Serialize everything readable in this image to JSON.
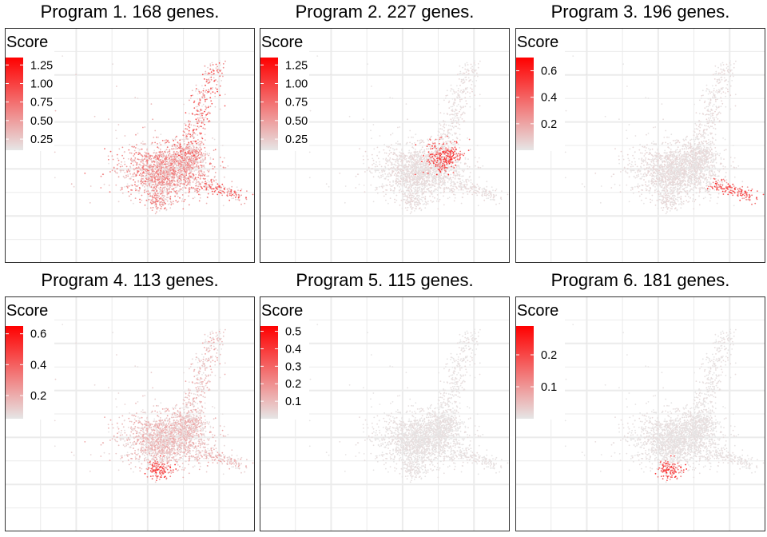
{
  "figure": {
    "colors": {
      "low": "#e6e6e6",
      "high": "#ff0000",
      "grid": "#ebebeb",
      "border": "#333333",
      "text": "#000000"
    }
  },
  "chart_data": [
    {
      "type": "scatter",
      "title": "Program 1. 168 genes.",
      "legend": {
        "title": "Score",
        "ticks": [
          "1.25",
          "1.00",
          "0.75",
          "0.50",
          "0.25"
        ],
        "tick_values": [
          1.25,
          1.0,
          0.75,
          0.5,
          0.25
        ],
        "range": [
          0.1,
          1.35
        ]
      },
      "hotspots": [],
      "intensity": 0.55
    },
    {
      "type": "scatter",
      "title": "Program 2. 227 genes.",
      "legend": {
        "title": "Score",
        "ticks": [
          "1.25",
          "1.00",
          "0.75",
          "0.50",
          "0.25"
        ],
        "tick_values": [
          1.25,
          1.0,
          0.75,
          0.5,
          0.25
        ],
        "range": [
          0.1,
          1.35
        ]
      },
      "hotspots": [
        "upper-right-lobe"
      ],
      "intensity": 0.08
    },
    {
      "type": "scatter",
      "title": "Program 3. 196 genes.",
      "legend": {
        "title": "Score",
        "ticks": [
          "0.6",
          "0.4",
          "0.2"
        ],
        "tick_values": [
          0.6,
          0.4,
          0.2
        ],
        "range": [
          0.0,
          0.7
        ]
      },
      "hotspots": [
        "right-tail"
      ],
      "intensity": 0.08
    },
    {
      "type": "scatter",
      "title": "Program 4. 113 genes.",
      "legend": {
        "title": "Score",
        "ticks": [
          "0.6",
          "0.4",
          "0.2"
        ],
        "tick_values": [
          0.6,
          0.4,
          0.2
        ],
        "range": [
          0.05,
          0.65
        ]
      },
      "hotspots": [
        "bottom-lobe"
      ],
      "intensity": 0.3
    },
    {
      "type": "scatter",
      "title": "Program 5. 115 genes.",
      "legend": {
        "title": "Score",
        "ticks": [
          "0.5",
          "0.4",
          "0.3",
          "0.2",
          "0.1"
        ],
        "tick_values": [
          0.5,
          0.4,
          0.3,
          0.2,
          0.1
        ],
        "range": [
          0.0,
          0.53
        ]
      },
      "hotspots": [],
      "intensity": 0.05
    },
    {
      "type": "scatter",
      "title": "Program 6. 181 genes.",
      "legend": {
        "title": "Score",
        "ticks": [
          "0.2",
          "0.1"
        ],
        "tick_values": [
          0.2,
          0.1
        ],
        "range": [
          0.0,
          0.29
        ]
      },
      "hotspots": [
        "bottom-lobe"
      ],
      "intensity": 0.05
    }
  ]
}
